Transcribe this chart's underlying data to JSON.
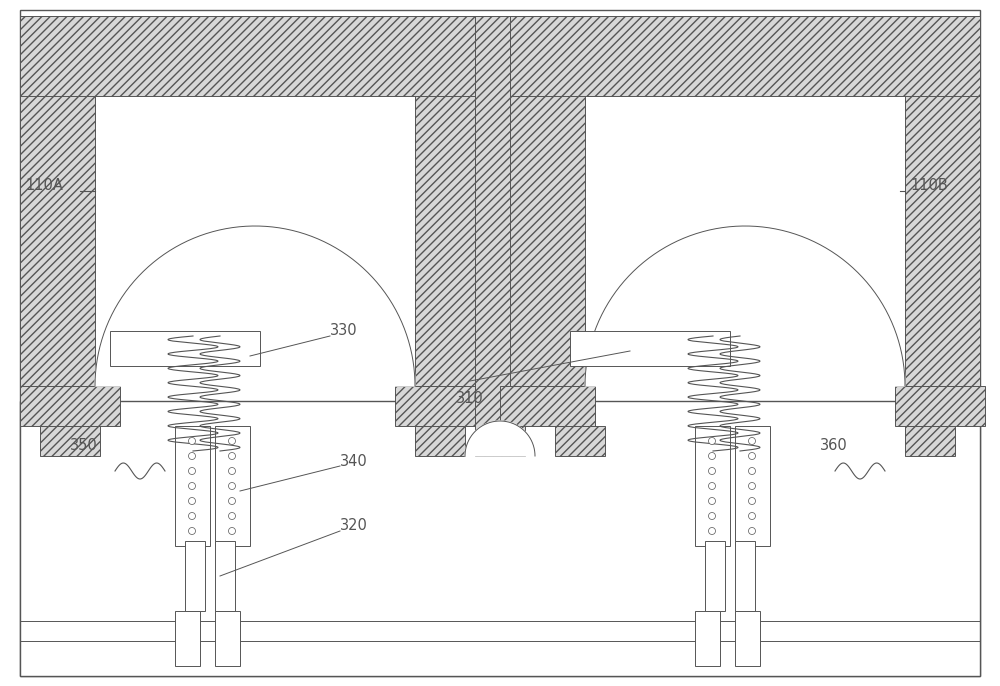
{
  "bg_color": "#ffffff",
  "line_color": "#555555",
  "hatch_fc": "#d8d8d8",
  "label_110A": "110A",
  "label_110B": "110B",
  "label_310": "310",
  "label_320": "320",
  "label_330": "330",
  "label_340": "340",
  "label_350": "350",
  "label_360": "360",
  "fig_width": 10.0,
  "fig_height": 6.86,
  "dpi": 100
}
